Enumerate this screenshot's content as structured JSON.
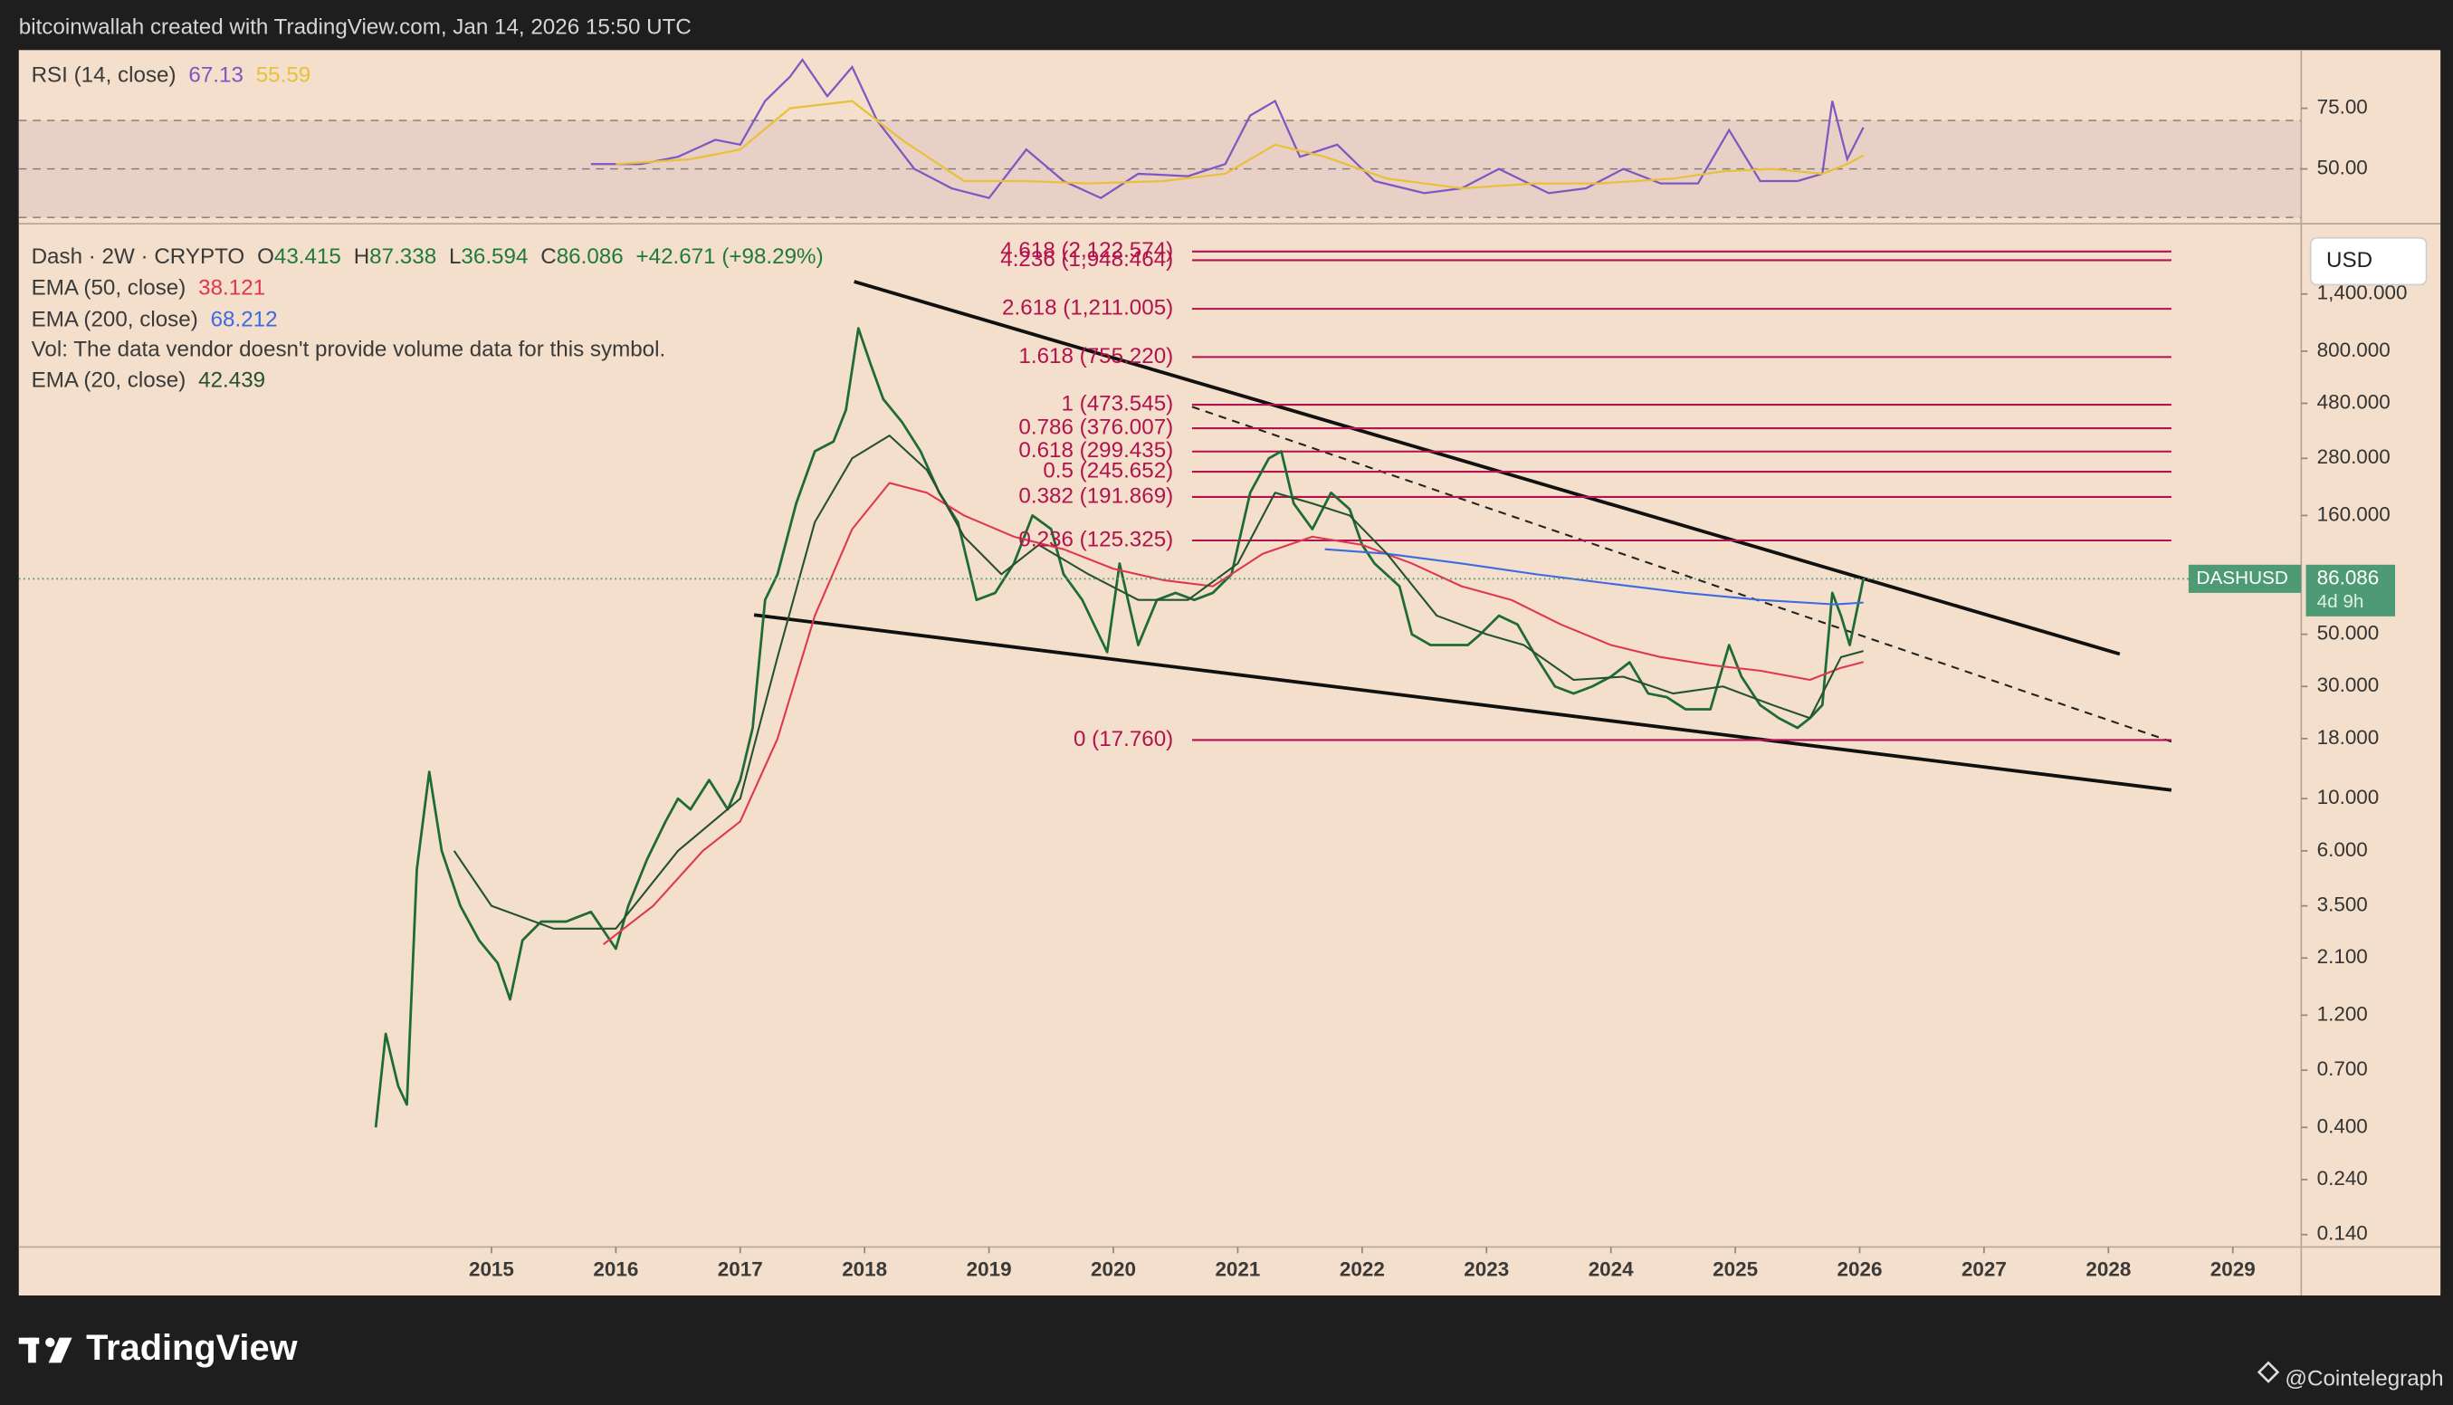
{
  "chart_data": {
    "type": "line",
    "header": "bitcoinwallah created with TradingView.com, Jan 14, 2026 15:50 UTC",
    "currency": "USD",
    "symbol": "Dash · 2W · CRYPTO",
    "ohlc_labels": [
      "O",
      "H",
      "L",
      "C"
    ],
    "ohlc": [
      43.415,
      87.338,
      36.594,
      86.086
    ],
    "change": "+42.671 (+98.29%)",
    "volume_note": "Vol: The data vendor doesn't provide volume data for this symbol.",
    "log_scale": true,
    "grid": false,
    "xlim": [
      2011.2,
      2029.55
    ],
    "xticks": [
      2015,
      2016,
      2017,
      2018,
      2019,
      2020,
      2021,
      2022,
      2023,
      2024,
      2025,
      2026,
      2027,
      2028,
      2029
    ],
    "ylim": [
      0.124,
      2580
    ],
    "yticks": [
      {
        "value": 0.14,
        "label": "0.140"
      },
      {
        "value": 0.24,
        "label": "0.240"
      },
      {
        "value": 0.4,
        "label": "0.400"
      },
      {
        "value": 0.7,
        "label": "0.700"
      },
      {
        "value": 1.2,
        "label": "1.200"
      },
      {
        "value": 2.1,
        "label": "2.100"
      },
      {
        "value": 3.5,
        "label": "3.500"
      },
      {
        "value": 6,
        "label": "6.000"
      },
      {
        "value": 10,
        "label": "10.000"
      },
      {
        "value": 18,
        "label": "18.000"
      },
      {
        "value": 30,
        "label": "30.000"
      },
      {
        "value": 50,
        "label": "50.000"
      },
      {
        "value": 160,
        "label": "160.000"
      },
      {
        "value": 280,
        "label": "280.000"
      },
      {
        "value": 480,
        "label": "480.000"
      },
      {
        "value": 800,
        "label": "800.000"
      },
      {
        "value": 1400,
        "label": "1,400.000"
      }
    ],
    "series": [
      {
        "name": "Dash · 2W · CRYPTO",
        "color": "#1f6b36",
        "x": [
          2014.07,
          2014.15,
          2014.25,
          2014.32,
          2014.4,
          2014.5,
          2014.6,
          2014.75,
          2014.9,
          2015.05,
          2015.15,
          2015.25,
          2015.4,
          2015.6,
          2015.8,
          2016.0,
          2016.1,
          2016.25,
          2016.4,
          2016.5,
          2016.6,
          2016.75,
          2016.9,
          2017.0,
          2017.1,
          2017.2,
          2017.3,
          2017.45,
          2017.6,
          2017.75,
          2017.85,
          2017.95,
          2018.05,
          2018.15,
          2018.3,
          2018.45,
          2018.6,
          2018.75,
          2018.9,
          2019.05,
          2019.2,
          2019.35,
          2019.5,
          2019.6,
          2019.75,
          2019.95,
          2020.05,
          2020.2,
          2020.35,
          2020.5,
          2020.65,
          2020.8,
          2020.95,
          2021.1,
          2021.25,
          2021.35,
          2021.45,
          2021.6,
          2021.75,
          2021.9,
          2022.0,
          2022.1,
          2022.3,
          2022.4,
          2022.55,
          2022.7,
          2022.85,
          2022.95,
          2023.1,
          2023.25,
          2023.4,
          2023.55,
          2023.7,
          2023.85,
          2024.0,
          2024.15,
          2024.3,
          2024.45,
          2024.6,
          2024.8,
          2024.95,
          2025.05,
          2025.2,
          2025.35,
          2025.5,
          2025.6,
          2025.7,
          2025.78,
          2025.85,
          2025.92,
          2026.03
        ],
        "values": [
          0.4,
          1.0,
          0.6,
          0.5,
          5,
          13,
          6,
          3.5,
          2.5,
          2.0,
          1.4,
          2.5,
          3.0,
          3.0,
          3.3,
          2.3,
          3.5,
          5.5,
          8,
          10,
          9,
          12,
          9,
          12,
          20,
          70,
          90,
          180,
          300,
          330,
          450,
          1000,
          700,
          500,
          400,
          300,
          200,
          150,
          70,
          75,
          100,
          160,
          140,
          90,
          70,
          42,
          100,
          45,
          70,
          75,
          70,
          75,
          90,
          200,
          280,
          300,
          180,
          140,
          200,
          170,
          120,
          100,
          80,
          50,
          45,
          45,
          45,
          50,
          60,
          55,
          40,
          30,
          28,
          30,
          33,
          38,
          28,
          27,
          24,
          24,
          45,
          33,
          25,
          22,
          20,
          22,
          25,
          75,
          60,
          45,
          86.086
        ]
      },
      {
        "name": "EMA (50, close)",
        "color": "#e0364f",
        "x": [
          2015.9,
          2016.3,
          2016.7,
          2017.0,
          2017.3,
          2017.6,
          2017.9,
          2018.2,
          2018.5,
          2018.8,
          2019.2,
          2019.6,
          2020.0,
          2020.4,
          2020.8,
          2021.2,
          2021.6,
          2022.0,
          2022.4,
          2022.8,
          2023.2,
          2023.6,
          2024.0,
          2024.4,
          2024.8,
          2025.2,
          2025.6,
          2025.85,
          2026.03
        ],
        "values": [
          2.4,
          3.5,
          6,
          8,
          18,
          60,
          140,
          220,
          200,
          160,
          130,
          115,
          95,
          85,
          80,
          110,
          130,
          120,
          100,
          80,
          70,
          55,
          45,
          40,
          37,
          35,
          32,
          36,
          38.121
        ]
      },
      {
        "name": "EMA (200, close)",
        "color": "#3d6ae0",
        "x": [
          2021.7,
          2022.2,
          2022.8,
          2023.4,
          2024.0,
          2024.6,
          2025.2,
          2025.8,
          2026.03
        ],
        "values": [
          115,
          110,
          100,
          90,
          82,
          75,
          70,
          67,
          68.212
        ]
      },
      {
        "name": "EMA (20, close)",
        "color": "#24522c",
        "x": [
          2014.7,
          2015.0,
          2015.5,
          2016.0,
          2016.5,
          2017.0,
          2017.3,
          2017.6,
          2017.9,
          2018.2,
          2018.5,
          2018.8,
          2019.1,
          2019.4,
          2019.8,
          2020.2,
          2020.6,
          2021.0,
          2021.3,
          2021.6,
          2021.9,
          2022.2,
          2022.6,
          2023.0,
          2023.3,
          2023.7,
          2024.1,
          2024.5,
          2024.9,
          2025.3,
          2025.6,
          2025.85,
          2026.03
        ],
        "values": [
          6,
          3.5,
          2.8,
          2.8,
          6,
          10,
          40,
          150,
          280,
          350,
          250,
          130,
          90,
          120,
          90,
          70,
          70,
          100,
          200,
          180,
          160,
          110,
          60,
          50,
          45,
          32,
          33,
          28,
          30,
          25,
          22,
          40,
          42.439
        ]
      }
    ],
    "last_price": {
      "name": "DASHUSD",
      "value": 86.086,
      "countdown": "4d 9h",
      "color": "#4e9a74"
    },
    "fib_color": "#b3124f",
    "fib_levels": [
      {
        "value": 2122.574,
        "label": "4.618 (2,122.574)"
      },
      {
        "value": 1948.464,
        "label": "4.236 (1,948.464)"
      },
      {
        "value": 1211.005,
        "label": "2.618 (1,211.005)"
      },
      {
        "value": 755.22,
        "label": "1.618 (755.220)"
      },
      {
        "value": 473.545,
        "label": "1 (473.545)"
      },
      {
        "value": 376.007,
        "label": "0.786 (376.007)"
      },
      {
        "value": 299.435,
        "label": "0.618 (299.435)"
      },
      {
        "value": 245.652,
        "label": "0.5 (245.652)"
      },
      {
        "value": 191.869,
        "label": "0.382 (191.869)"
      },
      {
        "value": 125.325,
        "label": "0.236 (125.325)"
      },
      {
        "value": 17.76,
        "label": "0 (17.760)"
      }
    ],
    "rsi": {
      "title": "RSI (14, close)",
      "ylim": [
        27.4,
        99
      ],
      "yticks": [
        {
          "value": 75,
          "label": "75.00"
        },
        {
          "value": 50,
          "label": "50.00"
        }
      ],
      "levels": [
        70,
        50,
        30
      ],
      "series": [
        {
          "color": "#7e57c2",
          "x": [
            2015.8,
            2016.2,
            2016.5,
            2016.8,
            2017.0,
            2017.2,
            2017.4,
            2017.5,
            2017.7,
            2017.9,
            2018.1,
            2018.4,
            2018.7,
            2019.0,
            2019.3,
            2019.6,
            2019.9,
            2020.2,
            2020.6,
            2020.9,
            2021.1,
            2021.3,
            2021.5,
            2021.8,
            2022.1,
            2022.5,
            2022.8,
            2023.1,
            2023.5,
            2023.8,
            2024.1,
            2024.4,
            2024.7,
            2024.95,
            2025.2,
            2025.5,
            2025.7,
            2025.78,
            2025.9,
            2026.03
          ],
          "values": [
            52,
            52,
            55,
            62,
            60,
            78,
            88,
            95,
            80,
            92,
            70,
            50,
            42,
            38,
            58,
            45,
            38,
            48,
            47,
            52,
            72,
            78,
            55,
            60,
            45,
            40,
            42,
            50,
            40,
            42,
            50,
            44,
            44,
            66,
            45,
            45,
            48,
            78,
            54,
            67.13
          ]
        },
        {
          "color": "#e8c13a",
          "x": [
            2016.0,
            2016.6,
            2017.0,
            2017.4,
            2017.9,
            2018.3,
            2018.8,
            2019.3,
            2019.8,
            2020.4,
            2020.9,
            2021.3,
            2021.7,
            2022.2,
            2022.8,
            2023.4,
            2023.9,
            2024.5,
            2024.9,
            2025.3,
            2025.7,
            2025.9,
            2026.03
          ],
          "values": [
            52,
            54,
            58,
            75,
            78,
            62,
            45,
            45,
            44,
            45,
            48,
            60,
            55,
            46,
            42,
            44,
            44,
            46,
            49,
            50,
            48,
            52,
            55.59
          ]
        }
      ]
    },
    "watermark": "TradingView",
    "credit": "@Cointelegraph"
  }
}
